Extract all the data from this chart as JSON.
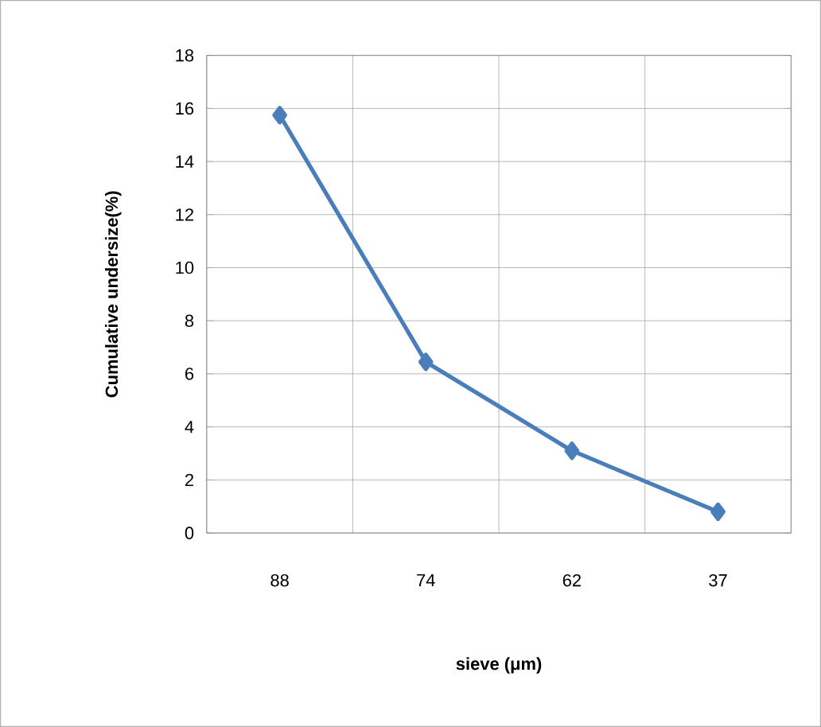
{
  "chart_data": {
    "type": "line",
    "xlabel": "sieve (μm)",
    "ylabel": "Cumulative undersize(%)",
    "categories": [
      "88",
      "74",
      "62",
      "37"
    ],
    "series": [
      {
        "color": "#4a7ebb",
        "values": [
          15.75,
          6.45,
          3.1,
          0.8
        ]
      }
    ],
    "ylim": [
      0,
      18
    ],
    "yticks": [
      0,
      2,
      4,
      6,
      8,
      10,
      12,
      14,
      16,
      18
    ],
    "grid": true,
    "marker": "diamond",
    "line_style": "solid"
  }
}
